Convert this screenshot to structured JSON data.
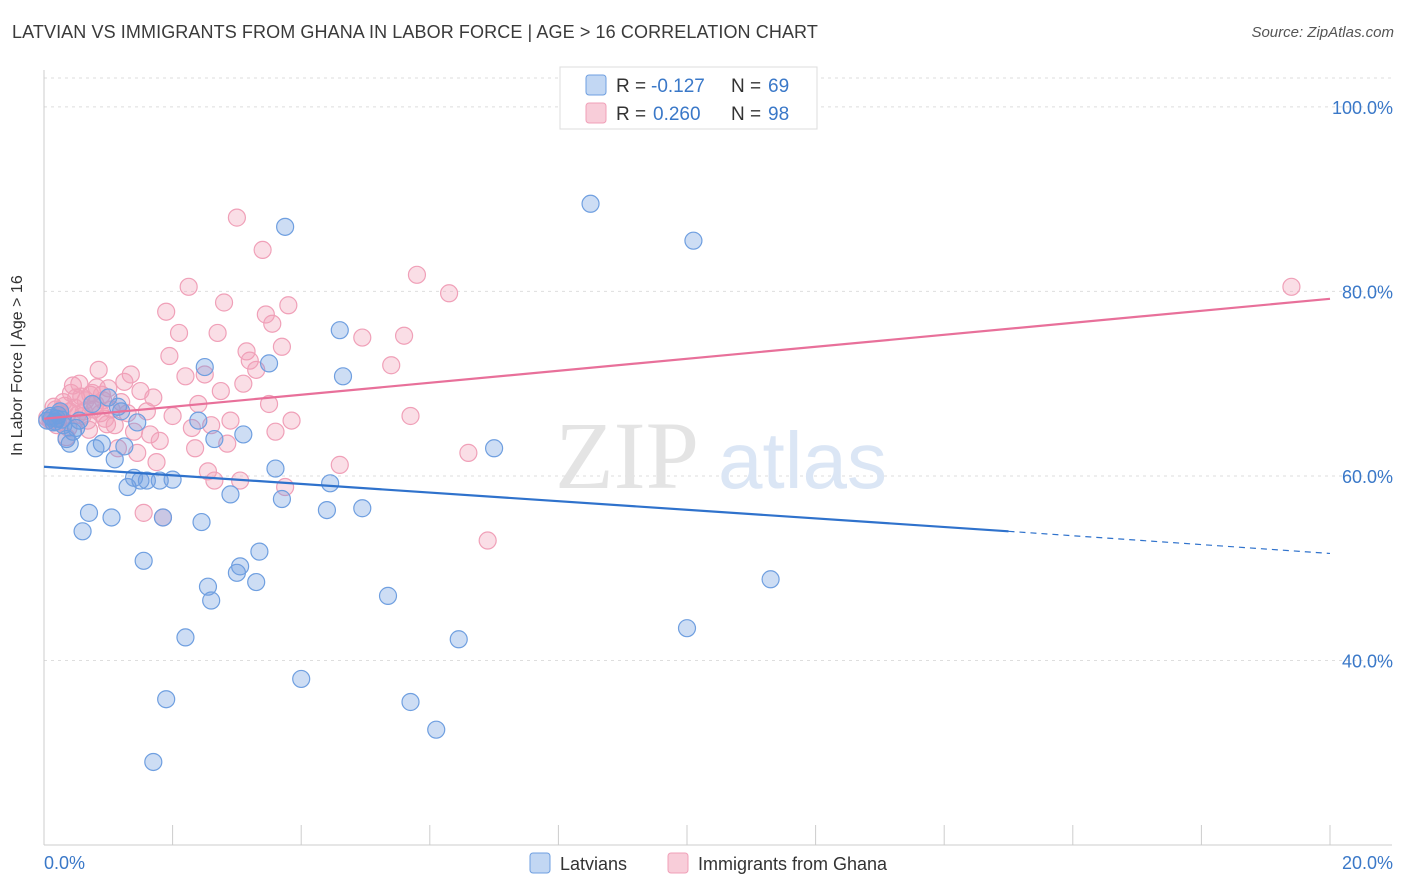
{
  "header": {
    "title": "LATVIAN VS IMMIGRANTS FROM GHANA IN LABOR FORCE | AGE > 16 CORRELATION CHART",
    "source": "Source: ZipAtlas.com"
  },
  "watermark": {
    "zip": "ZIP",
    "atlas": "atlas"
  },
  "chart_data": {
    "type": "scatter",
    "title": "LATVIAN VS IMMIGRANTS FROM GHANA IN LABOR FORCE | AGE > 16 CORRELATION CHART",
    "ylabel": "In Labor Force | Age > 16",
    "xlabel": "",
    "xlim": [
      0,
      20
    ],
    "ylim": [
      20,
      104
    ],
    "x_tick_labels": [
      "0.0%",
      "20.0%"
    ],
    "y_ticks": [
      40,
      60,
      80,
      100
    ],
    "y_tick_labels": [
      "40.0%",
      "60.0%",
      "80.0%",
      "100.0%"
    ],
    "grid": true,
    "legend_position": "top-center",
    "colors": {
      "latvians": "#6f9fe0",
      "ghana": "#f0a0b8",
      "latvians_line": "#2f72cc",
      "ghana_line": "#e8709a",
      "axis_text": "#3a78c8"
    },
    "series": [
      {
        "name": "Latvians",
        "legend": {
          "r_label": "R =",
          "r_value": "-0.127",
          "n_label": "N =",
          "n_value": "69"
        },
        "trend": {
          "x0": 0,
          "y0": 61.0,
          "x1": 15.0,
          "y1": 54.0,
          "dash_to_x": 20,
          "dash_to_y": 51.6
        },
        "points": [
          [
            0.1,
            66.5
          ],
          [
            0.15,
            65.8
          ],
          [
            0.2,
            66.2
          ],
          [
            0.25,
            67.0
          ],
          [
            0.3,
            65.5
          ],
          [
            0.35,
            64.0
          ],
          [
            0.4,
            63.5
          ],
          [
            0.45,
            64.8
          ],
          [
            0.5,
            65.2
          ],
          [
            0.55,
            66.0
          ],
          [
            0.6,
            54.0
          ],
          [
            0.7,
            56.0
          ],
          [
            0.75,
            67.8
          ],
          [
            0.8,
            63.0
          ],
          [
            0.9,
            63.5
          ],
          [
            1.0,
            68.5
          ],
          [
            1.05,
            55.5
          ],
          [
            1.1,
            61.8
          ],
          [
            1.15,
            67.5
          ],
          [
            1.2,
            67.0
          ],
          [
            1.25,
            63.2
          ],
          [
            1.3,
            58.8
          ],
          [
            1.4,
            59.8
          ],
          [
            1.45,
            65.8
          ],
          [
            1.5,
            59.5
          ],
          [
            1.55,
            50.8
          ],
          [
            1.6,
            59.5
          ],
          [
            1.7,
            29.0
          ],
          [
            1.8,
            59.5
          ],
          [
            1.85,
            55.5
          ],
          [
            1.9,
            35.8
          ],
          [
            2.0,
            59.6
          ],
          [
            2.2,
            42.5
          ],
          [
            2.4,
            66.0
          ],
          [
            2.45,
            55.0
          ],
          [
            2.5,
            71.8
          ],
          [
            2.55,
            48.0
          ],
          [
            2.6,
            46.5
          ],
          [
            2.65,
            64.0
          ],
          [
            2.9,
            58.0
          ],
          [
            3.0,
            49.5
          ],
          [
            3.05,
            50.2
          ],
          [
            3.1,
            64.5
          ],
          [
            3.3,
            48.5
          ],
          [
            3.35,
            51.8
          ],
          [
            3.5,
            72.2
          ],
          [
            3.6,
            60.8
          ],
          [
            3.7,
            57.5
          ],
          [
            3.75,
            87.0
          ],
          [
            4.0,
            38.0
          ],
          [
            4.4,
            56.3
          ],
          [
            4.45,
            59.2
          ],
          [
            4.6,
            75.8
          ],
          [
            4.65,
            70.8
          ],
          [
            4.95,
            56.5
          ],
          [
            5.35,
            47.0
          ],
          [
            5.7,
            35.5
          ],
          [
            6.1,
            32.5
          ],
          [
            6.45,
            42.3
          ],
          [
            7.0,
            63.0
          ],
          [
            8.5,
            89.5
          ],
          [
            10.0,
            43.5
          ],
          [
            10.1,
            85.5
          ],
          [
            11.3,
            48.8
          ],
          [
            0.05,
            66.0
          ],
          [
            0.12,
            66.3
          ],
          [
            0.18,
            65.9
          ],
          [
            0.22,
            66.6
          ],
          [
            0.28,
            66.1
          ]
        ]
      },
      {
        "name": "Immigrants from Ghana",
        "legend": {
          "r_label": "R =",
          "r_value": "0.260",
          "n_label": "N =",
          "n_value": "98"
        },
        "trend": {
          "x0": 0,
          "y0": 66.2,
          "x1": 20,
          "y1": 79.2
        },
        "points": [
          [
            0.1,
            66.0
          ],
          [
            0.15,
            67.5
          ],
          [
            0.2,
            65.5
          ],
          [
            0.25,
            66.8
          ],
          [
            0.3,
            68.0
          ],
          [
            0.35,
            64.2
          ],
          [
            0.4,
            67.0
          ],
          [
            0.45,
            69.8
          ],
          [
            0.5,
            68.5
          ],
          [
            0.55,
            70.0
          ],
          [
            0.6,
            66.5
          ],
          [
            0.65,
            68.2
          ],
          [
            0.7,
            65.0
          ],
          [
            0.75,
            69.0
          ],
          [
            0.8,
            67.8
          ],
          [
            0.85,
            71.5
          ],
          [
            0.9,
            68.8
          ],
          [
            0.95,
            66.2
          ],
          [
            1.0,
            69.5
          ],
          [
            1.05,
            67.2
          ],
          [
            1.1,
            65.5
          ],
          [
            1.15,
            63.0
          ],
          [
            1.2,
            68.0
          ],
          [
            1.25,
            70.2
          ],
          [
            1.3,
            66.8
          ],
          [
            1.35,
            71.0
          ],
          [
            1.4,
            64.8
          ],
          [
            1.45,
            62.5
          ],
          [
            1.5,
            69.2
          ],
          [
            1.55,
            56.0
          ],
          [
            1.6,
            67.0
          ],
          [
            1.65,
            64.5
          ],
          [
            1.7,
            68.5
          ],
          [
            1.75,
            61.5
          ],
          [
            1.8,
            63.8
          ],
          [
            1.85,
            55.5
          ],
          [
            1.9,
            77.8
          ],
          [
            1.95,
            73.0
          ],
          [
            2.0,
            66.5
          ],
          [
            2.1,
            75.5
          ],
          [
            2.2,
            70.8
          ],
          [
            2.25,
            80.5
          ],
          [
            2.3,
            65.2
          ],
          [
            2.35,
            63.0
          ],
          [
            2.4,
            67.8
          ],
          [
            2.5,
            71.0
          ],
          [
            2.55,
            60.5
          ],
          [
            2.6,
            65.5
          ],
          [
            2.65,
            59.5
          ],
          [
            2.7,
            75.5
          ],
          [
            2.75,
            69.2
          ],
          [
            2.8,
            78.8
          ],
          [
            2.85,
            63.5
          ],
          [
            2.9,
            66.0
          ],
          [
            3.0,
            88.0
          ],
          [
            3.05,
            59.5
          ],
          [
            3.1,
            70.0
          ],
          [
            3.15,
            73.5
          ],
          [
            3.2,
            72.5
          ],
          [
            3.3,
            71.5
          ],
          [
            3.4,
            84.5
          ],
          [
            3.45,
            77.5
          ],
          [
            3.5,
            67.8
          ],
          [
            3.55,
            76.5
          ],
          [
            3.6,
            64.8
          ],
          [
            3.7,
            74.0
          ],
          [
            3.75,
            58.8
          ],
          [
            3.8,
            78.5
          ],
          [
            3.85,
            66.0
          ],
          [
            4.6,
            61.2
          ],
          [
            4.95,
            75.0
          ],
          [
            5.4,
            72.0
          ],
          [
            5.6,
            75.2
          ],
          [
            5.7,
            66.5
          ],
          [
            5.8,
            81.8
          ],
          [
            6.3,
            79.8
          ],
          [
            6.6,
            62.5
          ],
          [
            6.9,
            53.0
          ],
          [
            19.4,
            80.5
          ],
          [
            0.05,
            66.3
          ],
          [
            0.12,
            66.0
          ],
          [
            0.18,
            67.2
          ],
          [
            0.22,
            65.8
          ],
          [
            0.28,
            66.4
          ],
          [
            0.32,
            67.6
          ],
          [
            0.38,
            65.2
          ],
          [
            0.42,
            69.0
          ],
          [
            0.48,
            67.4
          ],
          [
            0.52,
            66.6
          ],
          [
            0.58,
            68.6
          ],
          [
            0.62,
            67.0
          ],
          [
            0.68,
            66.0
          ],
          [
            0.72,
            68.8
          ],
          [
            0.78,
            67.2
          ],
          [
            0.82,
            69.6
          ],
          [
            0.88,
            66.8
          ],
          [
            0.92,
            68.2
          ],
          [
            0.98,
            65.6
          ]
        ]
      }
    ]
  }
}
